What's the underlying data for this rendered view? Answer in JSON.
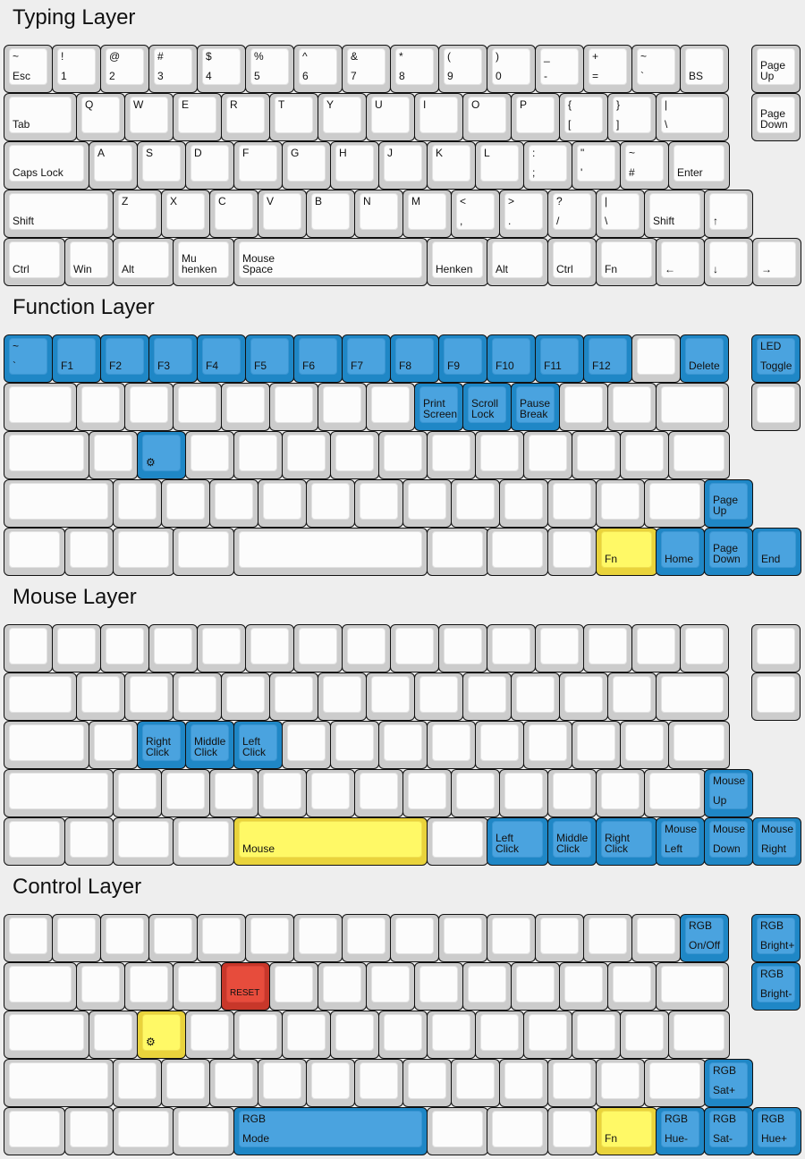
{
  "colors": {
    "blue": "#4aa3df",
    "yellow": "#fff966",
    "red": "#e74c3c",
    "plain": "#fcfcfc"
  },
  "layers": [
    {
      "title": "Typing Layer",
      "rows": [
        [
          {
            "t": "~",
            "b": "Esc"
          },
          {
            "t": "!",
            "b": "1"
          },
          {
            "t": "@",
            "b": "2"
          },
          {
            "t": "#",
            "b": "3"
          },
          {
            "t": "$",
            "b": "4"
          },
          {
            "t": "%",
            "b": "5"
          },
          {
            "t": "^",
            "b": "6"
          },
          {
            "t": "&",
            "b": "7"
          },
          {
            "t": "*",
            "b": "8"
          },
          {
            "t": "(",
            "b": "9"
          },
          {
            "t": ")",
            "b": "0"
          },
          {
            "t": "_",
            "b": "-"
          },
          {
            "t": "+",
            "b": "="
          },
          {
            "t": "~",
            "b": "`"
          },
          {
            "b": "BS"
          },
          {
            "b": "Page\nUp"
          }
        ],
        [
          {
            "b": "Tab"
          },
          {
            "t": "Q"
          },
          {
            "t": "W"
          },
          {
            "t": "E"
          },
          {
            "t": "R"
          },
          {
            "t": "T"
          },
          {
            "t": "Y"
          },
          {
            "t": "U"
          },
          {
            "t": "I"
          },
          {
            "t": "O"
          },
          {
            "t": "P"
          },
          {
            "t": "{",
            "b": "["
          },
          {
            "t": "}",
            "b": "]"
          },
          {
            "t": "|",
            "b": "\\"
          },
          {
            "b": "Page\nDown"
          }
        ],
        [
          {
            "b": "Caps Lock"
          },
          {
            "t": "A"
          },
          {
            "t": "S"
          },
          {
            "t": "D"
          },
          {
            "t": "F"
          },
          {
            "t": "G"
          },
          {
            "t": "H"
          },
          {
            "t": "J"
          },
          {
            "t": "K"
          },
          {
            "t": "L"
          },
          {
            "t": ":",
            "b": ";"
          },
          {
            "t": "\"",
            "b": "'"
          },
          {
            "t": "~",
            "b": "#"
          },
          {
            "b": "Enter"
          }
        ],
        [
          {
            "b": "Shift"
          },
          {
            "t": "Z"
          },
          {
            "t": "X"
          },
          {
            "t": "C"
          },
          {
            "t": "V"
          },
          {
            "t": "B"
          },
          {
            "t": "N"
          },
          {
            "t": "M"
          },
          {
            "t": "<",
            "b": ","
          },
          {
            "t": ">",
            "b": "."
          },
          {
            "t": "?",
            "b": "/"
          },
          {
            "t": "|",
            "b": "\\"
          },
          {
            "b": "Shift"
          },
          {
            "b": "↑"
          }
        ],
        [
          {
            "b": "Ctrl"
          },
          {
            "b": "Win"
          },
          {
            "b": "Alt"
          },
          {
            "b": "Mu\nhenken"
          },
          {
            "b": "Mouse\nSpace"
          },
          {
            "b": "Henken"
          },
          {
            "b": "Alt"
          },
          {
            "b": "Ctrl"
          },
          {
            "b": "Fn"
          },
          {
            "b": "←"
          },
          {
            "b": "↓"
          },
          {
            "b": "→"
          }
        ]
      ]
    },
    {
      "title": "Function Layer",
      "rows": [
        [
          {
            "t": "~",
            "b": "`",
            "c": "blue"
          },
          {
            "b": "F1",
            "c": "blue"
          },
          {
            "b": "F2",
            "c": "blue"
          },
          {
            "b": "F3",
            "c": "blue"
          },
          {
            "b": "F4",
            "c": "blue"
          },
          {
            "b": "F5",
            "c": "blue"
          },
          {
            "b": "F6",
            "c": "blue"
          },
          {
            "b": "F7",
            "c": "blue"
          },
          {
            "b": "F8",
            "c": "blue"
          },
          {
            "b": "F9",
            "c": "blue"
          },
          {
            "b": "F10",
            "c": "blue"
          },
          {
            "b": "F11",
            "c": "blue"
          },
          {
            "b": "F12",
            "c": "blue"
          },
          {},
          {
            "b": "Delete",
            "c": "blue"
          },
          {
            "t": "LED",
            "b": "Toggle",
            "c": "blue"
          }
        ],
        [
          {},
          {},
          {},
          {},
          {},
          {},
          {},
          {},
          {
            "b": "Print\nScreen",
            "c": "blue"
          },
          {
            "b": "Scroll\nLock",
            "c": "blue"
          },
          {
            "b": "Pause\nBreak",
            "c": "blue"
          },
          {},
          {},
          {},
          {}
        ],
        [
          {},
          {},
          {
            "icon": "gear",
            "c": "blue"
          },
          {},
          {},
          {},
          {},
          {},
          {},
          {},
          {},
          {},
          {},
          {}
        ],
        [
          {},
          {},
          {},
          {},
          {},
          {},
          {},
          {},
          {},
          {},
          {},
          {},
          {},
          {
            "b": "Page\nUp",
            "c": "blue"
          }
        ],
        [
          {},
          {},
          {},
          {},
          {},
          {},
          {},
          {},
          {
            "b": "Fn",
            "c": "yellow"
          },
          {
            "b": "Home",
            "c": "blue"
          },
          {
            "b": "Page\nDown",
            "c": "blue"
          },
          {
            "b": "End",
            "c": "blue"
          }
        ]
      ]
    },
    {
      "title": "Mouse Layer",
      "rows": [
        [
          {},
          {},
          {},
          {},
          {},
          {},
          {},
          {},
          {},
          {},
          {},
          {},
          {},
          {},
          {},
          {}
        ],
        [
          {},
          {},
          {},
          {},
          {},
          {},
          {},
          {},
          {},
          {},
          {},
          {},
          {},
          {},
          {}
        ],
        [
          {},
          {},
          {
            "b": "Right\nClick",
            "c": "blue"
          },
          {
            "b": "Middle\nClick",
            "c": "blue"
          },
          {
            "b": "Left\nClick",
            "c": "blue"
          },
          {},
          {},
          {},
          {},
          {},
          {},
          {},
          {},
          {}
        ],
        [
          {},
          {},
          {},
          {},
          {},
          {},
          {},
          {},
          {},
          {},
          {},
          {},
          {},
          {
            "t": "Mouse",
            "b": "Up",
            "c": "blue"
          }
        ],
        [
          {},
          {},
          {},
          {},
          {
            "b": "Mouse",
            "c": "yellow"
          },
          {},
          {
            "b": "Left\nClick",
            "c": "blue"
          },
          {
            "b": "Middle\nClick",
            "c": "blue"
          },
          {
            "b": "Right\nClick",
            "c": "blue"
          },
          {
            "t": "Mouse",
            "b": "Left",
            "c": "blue"
          },
          {
            "t": "Mouse",
            "b": "Down",
            "c": "blue"
          },
          {
            "t": "Mouse",
            "b": "Right",
            "c": "blue"
          }
        ]
      ]
    },
    {
      "title": "Control Layer",
      "rows": [
        [
          {},
          {},
          {},
          {},
          {},
          {},
          {},
          {},
          {},
          {},
          {},
          {},
          {},
          {},
          {
            "t": "RGB",
            "b": "On/Off",
            "c": "blue"
          },
          {
            "t": "RGB",
            "b": "Bright+",
            "c": "blue"
          }
        ],
        [
          {},
          {},
          {},
          {},
          {
            "b": "RESET",
            "c": "red",
            "small": true
          },
          {},
          {},
          {},
          {},
          {},
          {},
          {},
          {},
          {},
          {
            "t": "RGB",
            "b": "Bright-",
            "c": "blue"
          }
        ],
        [
          {},
          {},
          {
            "icon": "gear",
            "c": "yellow"
          },
          {},
          {},
          {},
          {},
          {},
          {},
          {},
          {},
          {},
          {},
          {}
        ],
        [
          {},
          {},
          {},
          {},
          {},
          {},
          {},
          {},
          {},
          {},
          {},
          {},
          {},
          {
            "t": "RGB",
            "b": "Sat+",
            "c": "blue"
          }
        ],
        [
          {},
          {},
          {},
          {},
          {
            "t": "RGB",
            "b": "Mode",
            "c": "blue"
          },
          {},
          {},
          {},
          {
            "b": "Fn",
            "c": "yellow"
          },
          {
            "t": "RGB",
            "b": "Hue-",
            "c": "blue"
          },
          {
            "t": "RGB",
            "b": "Sat-",
            "c": "blue"
          },
          {
            "t": "RGB",
            "b": "Hue+",
            "c": "blue"
          }
        ]
      ]
    }
  ]
}
